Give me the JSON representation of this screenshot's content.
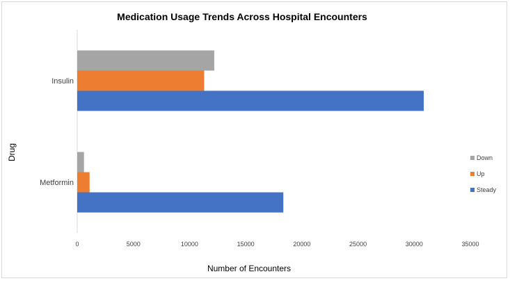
{
  "chart_data": {
    "type": "bar",
    "orientation": "horizontal",
    "title": "Medication Usage Trends Across Hospital Encounters",
    "xlabel": "Number of Encounters",
    "ylabel": "Drug",
    "xlim": [
      0,
      35000
    ],
    "xticks": [
      0,
      5000,
      10000,
      15000,
      20000,
      25000,
      30000,
      35000
    ],
    "categories": [
      "Metformin",
      "Insulin"
    ],
    "series": [
      {
        "name": "Steady",
        "color": "#4472c4",
        "values": [
          18350,
          30850
        ]
      },
      {
        "name": "Up",
        "color": "#ed7d31",
        "values": [
          1100,
          11300
        ]
      },
      {
        "name": "Down",
        "color": "#a5a5a5",
        "values": [
          600,
          12200
        ]
      }
    ],
    "grid": false,
    "legend_position": "right"
  }
}
